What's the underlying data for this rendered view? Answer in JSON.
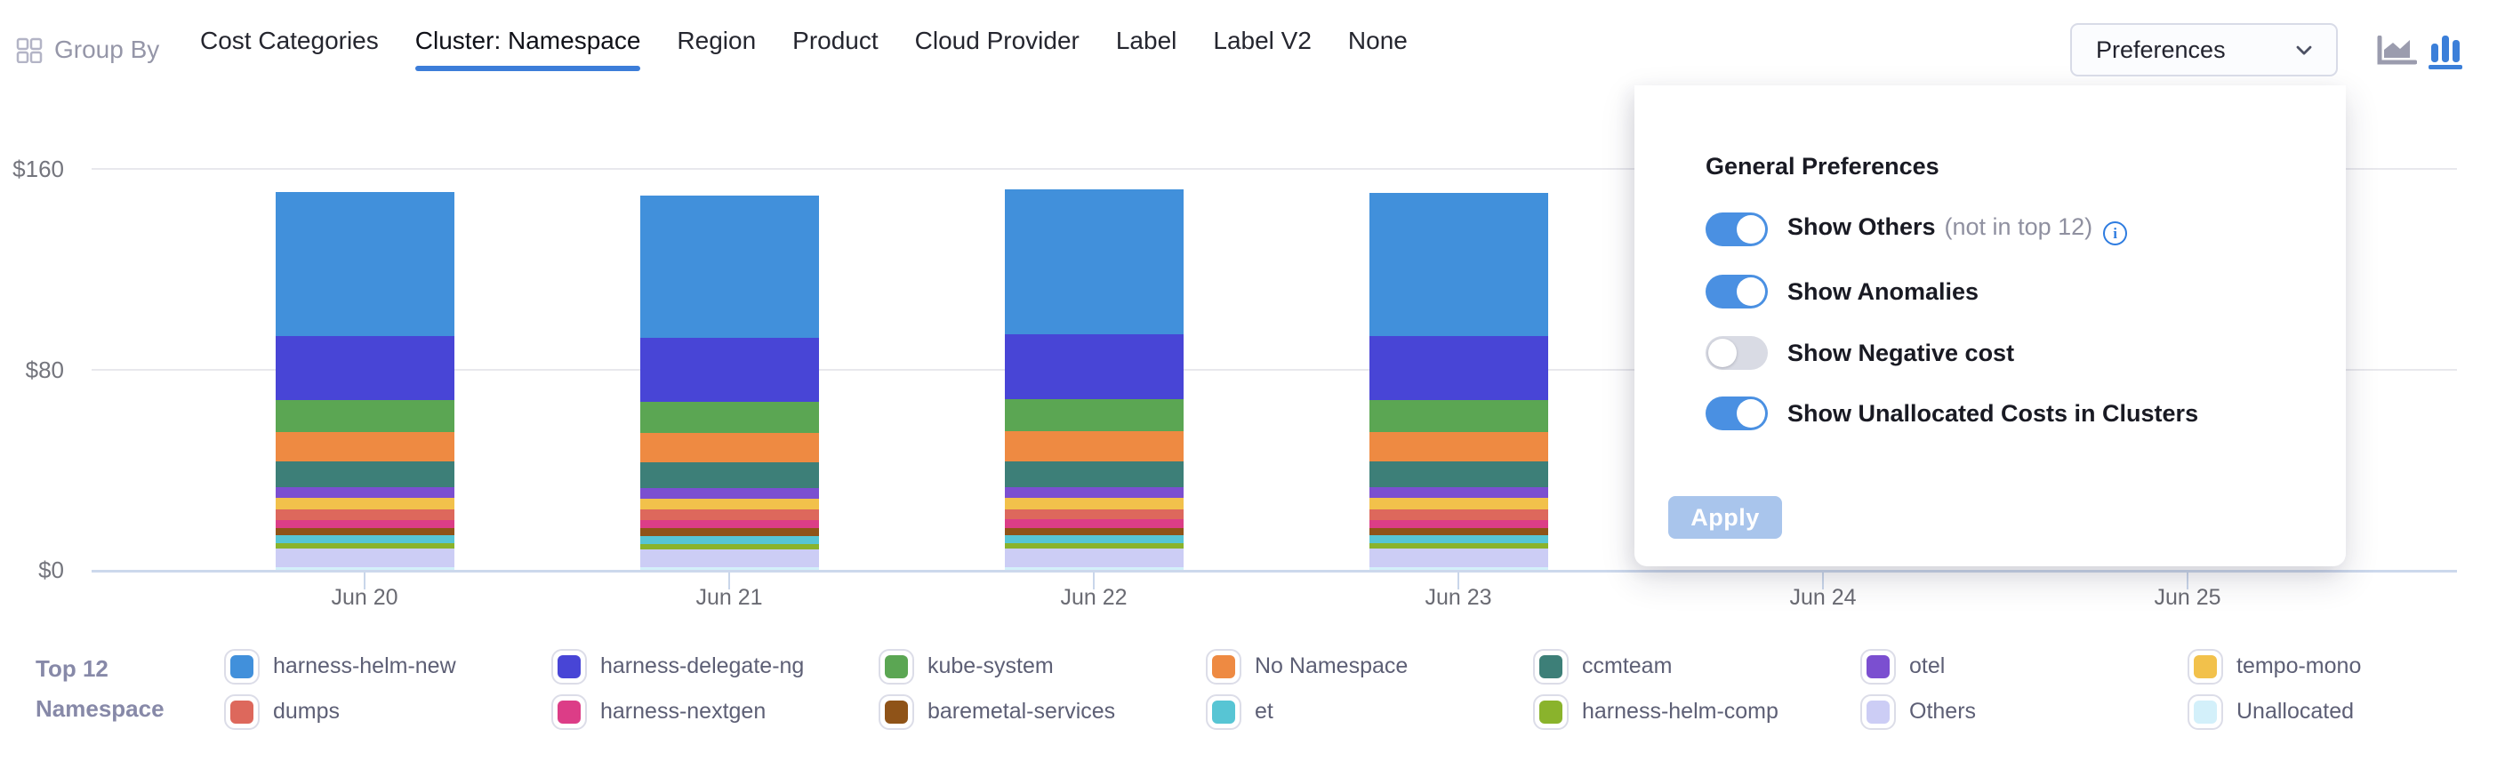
{
  "header": {
    "group_by_label": "Group By",
    "tabs": [
      "Cost Categories",
      "Cluster: Namespace",
      "Region",
      "Product",
      "Cloud Provider",
      "Label",
      "Label V2",
      "None"
    ],
    "active_tab": "Cluster: Namespace",
    "preferences_button_label": "Preferences",
    "chart_type_toggle": {
      "options": [
        "area-chart",
        "bar-chart"
      ],
      "active": "bar-chart"
    }
  },
  "preferences_panel": {
    "title": "General Preferences",
    "toggles": [
      {
        "label": "Show Others",
        "suffix": "(not in top 12)",
        "has_info_icon": true,
        "state": "on"
      },
      {
        "label": "Show Anomalies",
        "suffix": "",
        "has_info_icon": false,
        "state": "on"
      },
      {
        "label": "Show Negative cost",
        "suffix": "",
        "has_info_icon": false,
        "state": "off"
      },
      {
        "label": "Show Unallocated Costs in Clusters",
        "suffix": "",
        "has_info_icon": false,
        "state": "on"
      }
    ],
    "apply_button_label": "Apply"
  },
  "legend": {
    "title_line1": "Top 12",
    "title_line2": "Namespace"
  },
  "chart_data": {
    "type": "bar",
    "stacked": true,
    "currency": "USD",
    "categories": [
      "Jun 20",
      "Jun 21",
      "Jun 22",
      "Jun 23",
      "Jun 24",
      "Jun 25"
    ],
    "visible_bar_categories": [
      "Jun 20",
      "Jun 21",
      "Jun 22",
      "Jun 23"
    ],
    "occlusion_note": "Columns for Jun 24 and Jun 25 are hidden behind the open Preferences panel",
    "y_ticks": [
      "$0",
      "$80",
      "$160"
    ],
    "ylim": [
      0,
      160
    ],
    "grid": true,
    "legend_position": "bottom",
    "series": [
      {
        "name": "harness-helm-new",
        "color": "#4190DB",
        "values": [
          57.4,
          56.6,
          58.0,
          57.0
        ]
      },
      {
        "name": "harness-delegate-ng",
        "color": "#4845D6",
        "values": [
          25.8,
          25.6,
          25.9,
          25.7
        ]
      },
      {
        "name": "kube-system",
        "color": "#5BA653",
        "values": [
          12.6,
          12.5,
          12.7,
          12.6
        ]
      },
      {
        "name": "No Namespace",
        "color": "#EE8A42",
        "values": [
          11.9,
          11.8,
          12.0,
          11.9
        ]
      },
      {
        "name": "ccmteam",
        "color": "#3D7F78",
        "values": [
          10.1,
          10.0,
          10.2,
          10.1
        ]
      },
      {
        "name": "otel",
        "color": "#7B4FD0",
        "values": [
          4.4,
          4.4,
          4.4,
          4.4
        ]
      },
      {
        "name": "tempo-mono",
        "color": "#F2C14B",
        "values": [
          4.5,
          4.4,
          4.5,
          4.5
        ]
      },
      {
        "name": "dumps",
        "color": "#DD685C",
        "values": [
          4.1,
          4.1,
          4.1,
          4.1
        ]
      },
      {
        "name": "harness-nextgen",
        "color": "#DC3D87",
        "values": [
          3.4,
          3.4,
          3.4,
          3.4
        ]
      },
      {
        "name": "baremetal-services",
        "color": "#8F5318",
        "values": [
          2.9,
          2.9,
          2.9,
          2.9
        ]
      },
      {
        "name": "et",
        "color": "#57C5D4",
        "values": [
          3.2,
          3.2,
          3.2,
          3.2
        ]
      },
      {
        "name": "harness-helm-comp",
        "color": "#8AB32C",
        "values": [
          2.1,
          2.1,
          2.1,
          2.1
        ]
      },
      {
        "name": "Others",
        "color": "#CCCDF5",
        "values": [
          7.2,
          7.1,
          7.3,
          7.2
        ]
      },
      {
        "name": "Unallocated",
        "color": "#D3F0FA",
        "values": [
          1.2,
          1.2,
          1.2,
          1.2
        ]
      }
    ]
  },
  "colors": {
    "tab_underline": "#3C7DD9",
    "toggle_on": "#4A90E2",
    "toggle_off": "#D9DBE4",
    "apply_bg": "#A9C5EC",
    "chart_icon_active": "#3B7FD9",
    "chart_icon_inactive": "#9B9CAE",
    "info_icon": "#2E7CE0",
    "axis_line": "#CCD8EC",
    "gridline": "#E8E8ED"
  }
}
